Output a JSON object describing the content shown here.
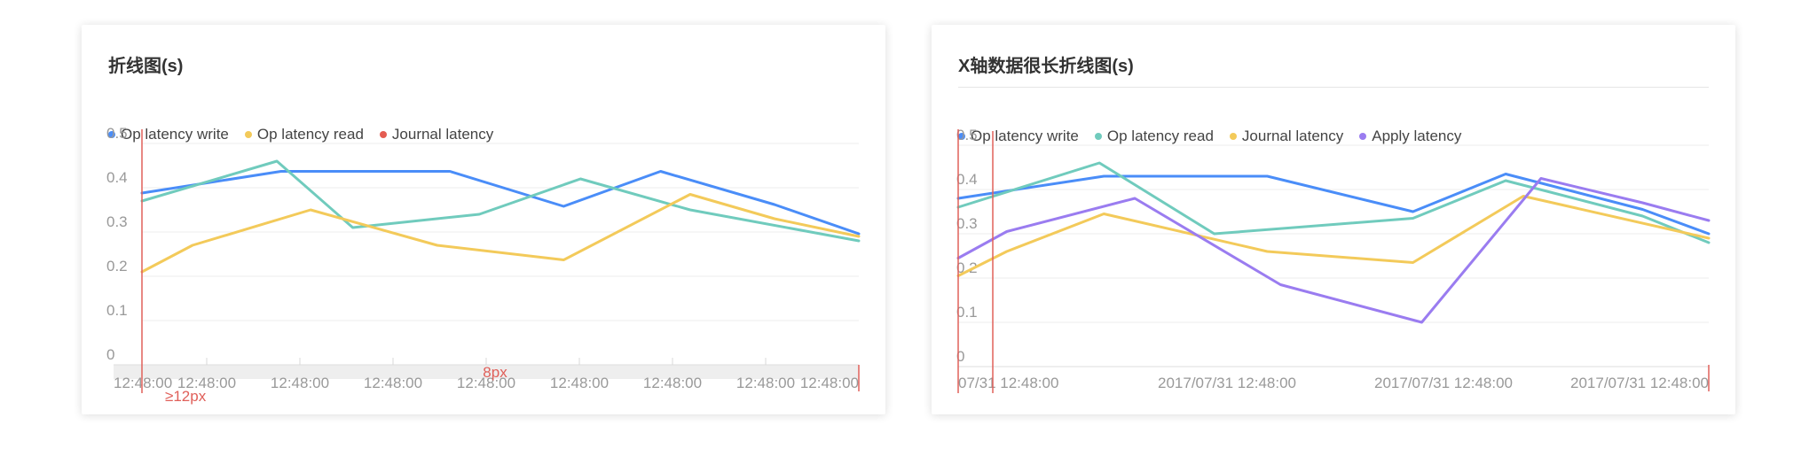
{
  "colors": {
    "series": [
      "#4a8df8",
      "#70cbbd",
      "#f3ca5a",
      "#9a7cf0"
    ],
    "journal_dot_left": "#e45c52",
    "annotation": "#e0605a",
    "grid": "#eeeeee",
    "axis_text": "#999999"
  },
  "chart_data": [
    {
      "type": "line",
      "title": "折线图(s)",
      "legend_position": "top-left",
      "legend": [
        {
          "label": "Op latency write",
          "color": "#4a8df8"
        },
        {
          "label": "Op latency read",
          "color": "#f3ca5a"
        },
        {
          "label": "Journal latency",
          "color": "#e45c52"
        }
      ],
      "yticks": [
        "0",
        "0.1",
        "0.2",
        "0.3",
        "0.4",
        "0.5"
      ],
      "ylim": [
        0,
        0.5
      ],
      "grid": true,
      "xticks": [
        "12:48:00",
        "12:48:00",
        "12:48:00",
        "12:48:00",
        "12:48:00",
        "12:48:00",
        "12:48:00",
        "12:48:00",
        "12:48:00"
      ],
      "x_points": 7,
      "series": [
        {
          "color": "#4a8df8",
          "values": [
            0.388,
            0.437,
            0.437,
            0.437,
            0.358,
            0.437,
            0.362,
            0.296
          ]
        },
        {
          "color": "#70cbbd",
          "values": [
            0.37,
            0.46,
            0.31,
            0.34,
            0.42,
            0.35,
            0.28
          ]
        },
        {
          "color": "#f3ca5a",
          "values": [
            0.21,
            0.27,
            0.35,
            0.27,
            0.237,
            0.385,
            0.33,
            0.29
          ]
        }
      ],
      "series_x": [
        [
          0,
          1.65,
          2.65,
          3.65,
          5,
          6.15,
          7.5,
          8.5
        ],
        [
          0,
          1.6,
          2.5,
          4,
          5.2,
          6.5,
          8.5
        ],
        [
          0,
          0.6,
          2,
          3.5,
          5,
          6.5,
          7.5,
          8.5
        ]
      ],
      "x_domain": [
        0,
        8.5
      ],
      "annotations": {
        "gap_label": "8px",
        "min_label": "≥12px"
      }
    },
    {
      "type": "line",
      "title": "X轴数据很长折线图(s)",
      "legend_position": "top-left",
      "legend": [
        {
          "label": "Op latency write",
          "color": "#4a8df8"
        },
        {
          "label": "Op latency read",
          "color": "#70cbbd"
        },
        {
          "label": "Journal latency",
          "color": "#f3ca5a"
        },
        {
          "label": "Apply latency",
          "color": "#9a7cf0"
        }
      ],
      "yticks": [
        "0",
        "0.1",
        "0.2",
        "0.3",
        "0.4",
        "0.5"
      ],
      "ylim": [
        0,
        0.5
      ],
      "grid": true,
      "xticks": [
        "07/31 12:48:00",
        "2017/07/31 12:48:00",
        "2017/07/31 12:48:00",
        "2017/07/31 12:48:00"
      ],
      "series": [
        {
          "color": "#4a8df8",
          "values": [
            0.38,
            0.43,
            0.43,
            0.35,
            0.435,
            0.355,
            0.3
          ]
        },
        {
          "color": "#70cbbd",
          "values": [
            0.36,
            0.46,
            0.3,
            0.335,
            0.42,
            0.34,
            0.28
          ]
        },
        {
          "color": "#f3ca5a",
          "values": [
            0.205,
            0.26,
            0.345,
            0.26,
            0.235,
            0.385,
            0.29
          ]
        },
        {
          "color": "#9a7cf0",
          "values": [
            0.245,
            0.305,
            0.38,
            0.185,
            0.1,
            0.425,
            0.37,
            0.33
          ]
        }
      ],
      "series_x": [
        [
          0,
          1.65,
          3.5,
          5.15,
          6.2,
          7.75,
          8.5
        ],
        [
          0,
          1.6,
          2.9,
          5.15,
          6.2,
          7.75,
          8.5
        ],
        [
          0,
          0.55,
          1.65,
          3.5,
          5.15,
          6.4,
          8.5
        ],
        [
          0,
          0.55,
          2,
          3.65,
          5.25,
          6.6,
          7.75,
          8.5
        ]
      ],
      "x_domain": [
        0,
        8.5
      ]
    }
  ]
}
